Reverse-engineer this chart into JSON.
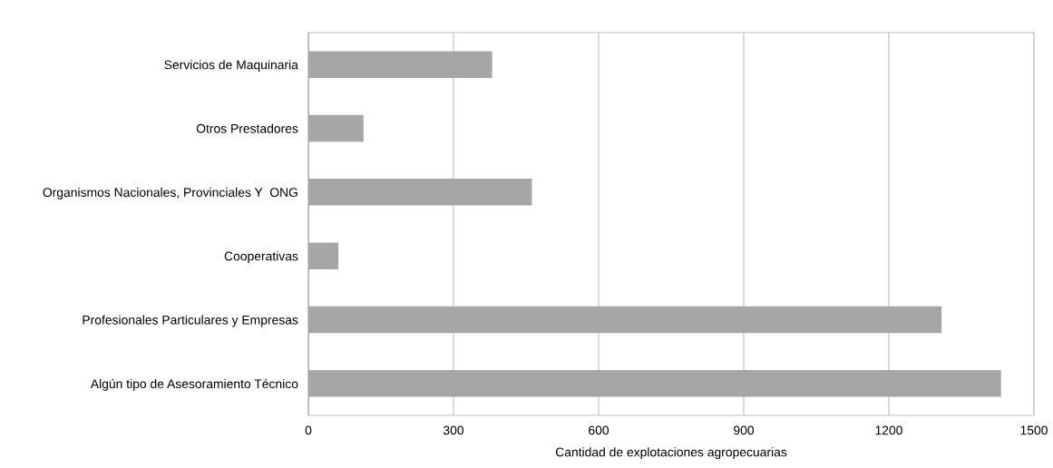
{
  "chart_data": {
    "type": "bar",
    "orientation": "horizontal",
    "categories": [
      "Servicios de Maquinaria",
      "Otros Prestadores",
      "Organismos Nacionales, Provinciales Y  ONG",
      "Cooperativas",
      "Profesionales Particulares y Empresas",
      "Algún tipo de Asesoramiento Técnico"
    ],
    "values": [
      380,
      114,
      462,
      62,
      1309,
      1432
    ],
    "color": "#a6a6a6",
    "xlabel": "Cantidad de explotaciones agropecuarias",
    "xlim": [
      0,
      1500
    ],
    "xticks": [
      0,
      300,
      600,
      900,
      1200,
      1500
    ],
    "grid": "x"
  }
}
